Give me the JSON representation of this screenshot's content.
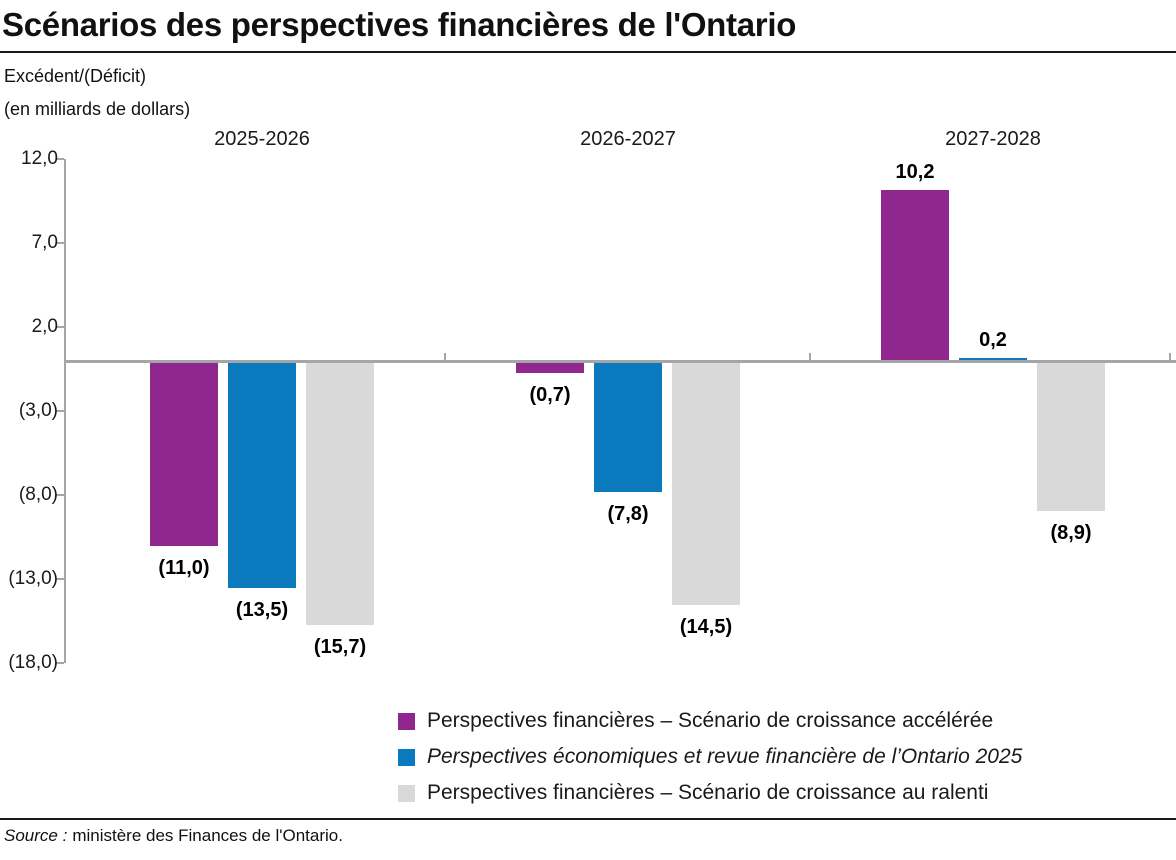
{
  "page": {
    "title": "Scénarios des perspectives financières de l'Ontario",
    "y_axis_title_line1": "Excédent/(Déficit)",
    "y_axis_title_line2": "(en milliards de dollars)",
    "source_label": "Source :",
    "source_text": "ministère des Finances de l'Ontario."
  },
  "colors": {
    "purple": "#90278E",
    "blue": "#0B79BE",
    "light_gray": "#D9D9D9",
    "axis_gray": "#A6A6A6",
    "text": "#1A1A1A"
  },
  "chart_data": {
    "type": "bar",
    "title": "Scénarios des perspectives financières de l'Ontario",
    "ylabel": "Excédent/(Déficit) (en milliards de dollars)",
    "xlabel": "",
    "categories": [
      "2025-2026",
      "2026-2027",
      "2027-2028"
    ],
    "series": [
      {
        "key": "croissance-acceleree",
        "name": "Perspectives financières – Scénario de croissance accélérée",
        "color": "#90278E",
        "italic": false,
        "values": [
          -11.0,
          -0.7,
          10.2
        ],
        "value_labels": [
          "(11,0)",
          "(0,7)",
          "10,2"
        ]
      },
      {
        "key": "perspectives-2025",
        "name": "Perspectives économiques et revue financière de l’Ontario 2025",
        "color": "#0B79BE",
        "italic": true,
        "values": [
          -13.5,
          -7.8,
          0.2
        ],
        "value_labels": [
          "(13,5)",
          "(7,8)",
          "0,2"
        ]
      },
      {
        "key": "croissance-ralenti",
        "name": "Perspectives financières – Scénario de croissance au ralenti",
        "color": "#D9D9D9",
        "italic": false,
        "values": [
          -15.7,
          -14.5,
          -8.9
        ],
        "value_labels": [
          "(15,7)",
          "(14,5)",
          "(8,9)"
        ]
      }
    ],
    "y_ticks": [
      {
        "value": 12,
        "label": "12,0"
      },
      {
        "value": 7,
        "label": "7,0"
      },
      {
        "value": 2,
        "label": "2,0"
      },
      {
        "value": -3,
        "label": "(3,0)"
      },
      {
        "value": -8,
        "label": "(8,0)"
      },
      {
        "value": -13,
        "label": "(13,0)"
      },
      {
        "value": -18,
        "label": "(18,0)"
      }
    ],
    "ylim": [
      -18,
      12
    ],
    "grid": false,
    "legend_position": "bottom"
  }
}
